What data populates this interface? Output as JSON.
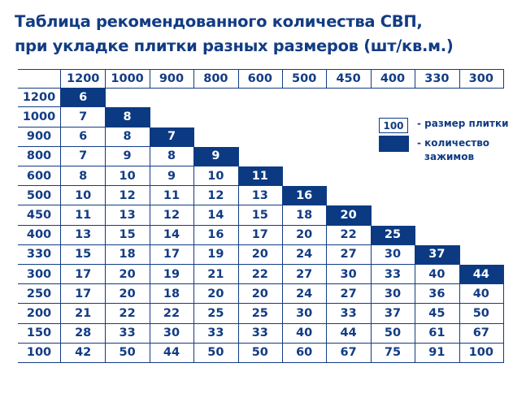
{
  "title": {
    "line1": "Таблица рекомендованного количества СВП,",
    "line2": "при укладке плитки разных размеров (шт/кв.м.)"
  },
  "table": {
    "columns": [
      "1200",
      "1000",
      "900",
      "800",
      "600",
      "500",
      "450",
      "400",
      "330",
      "300"
    ],
    "rows": [
      {
        "label": "1200",
        "values": [
          "6"
        ]
      },
      {
        "label": "1000",
        "values": [
          "7",
          "8"
        ]
      },
      {
        "label": "900",
        "values": [
          "6",
          "8",
          "7"
        ]
      },
      {
        "label": "800",
        "values": [
          "7",
          "9",
          "8",
          "9"
        ]
      },
      {
        "label": "600",
        "values": [
          "8",
          "10",
          "9",
          "10",
          "11"
        ]
      },
      {
        "label": "500",
        "values": [
          "10",
          "12",
          "11",
          "12",
          "13",
          "16"
        ]
      },
      {
        "label": "450",
        "values": [
          "11",
          "13",
          "12",
          "14",
          "15",
          "18",
          "20"
        ]
      },
      {
        "label": "400",
        "values": [
          "13",
          "15",
          "14",
          "16",
          "17",
          "20",
          "22",
          "25"
        ]
      },
      {
        "label": "330",
        "values": [
          "15",
          "18",
          "17",
          "19",
          "20",
          "24",
          "27",
          "30",
          "37"
        ]
      },
      {
        "label": "300",
        "values": [
          "17",
          "20",
          "19",
          "21",
          "22",
          "27",
          "30",
          "33",
          "40",
          "44"
        ]
      },
      {
        "label": "250",
        "values": [
          "17",
          "20",
          "18",
          "20",
          "20",
          "24",
          "27",
          "30",
          "36",
          "40"
        ]
      },
      {
        "label": "200",
        "values": [
          "21",
          "22",
          "22",
          "25",
          "25",
          "30",
          "33",
          "37",
          "45",
          "50"
        ]
      },
      {
        "label": "150",
        "values": [
          "28",
          "33",
          "30",
          "33",
          "33",
          "40",
          "44",
          "50",
          "61",
          "67"
        ]
      },
      {
        "label": "100",
        "values": [
          "42",
          "50",
          "44",
          "50",
          "50",
          "60",
          "67",
          "75",
          "91",
          "100"
        ]
      }
    ]
  },
  "legend": {
    "sample": "100",
    "size_label": "- размер плитки",
    "count_label_1": "- количество",
    "count_label_2": "зажимов"
  },
  "colors": {
    "accent": "#0b3a82",
    "text": "#123c84"
  }
}
